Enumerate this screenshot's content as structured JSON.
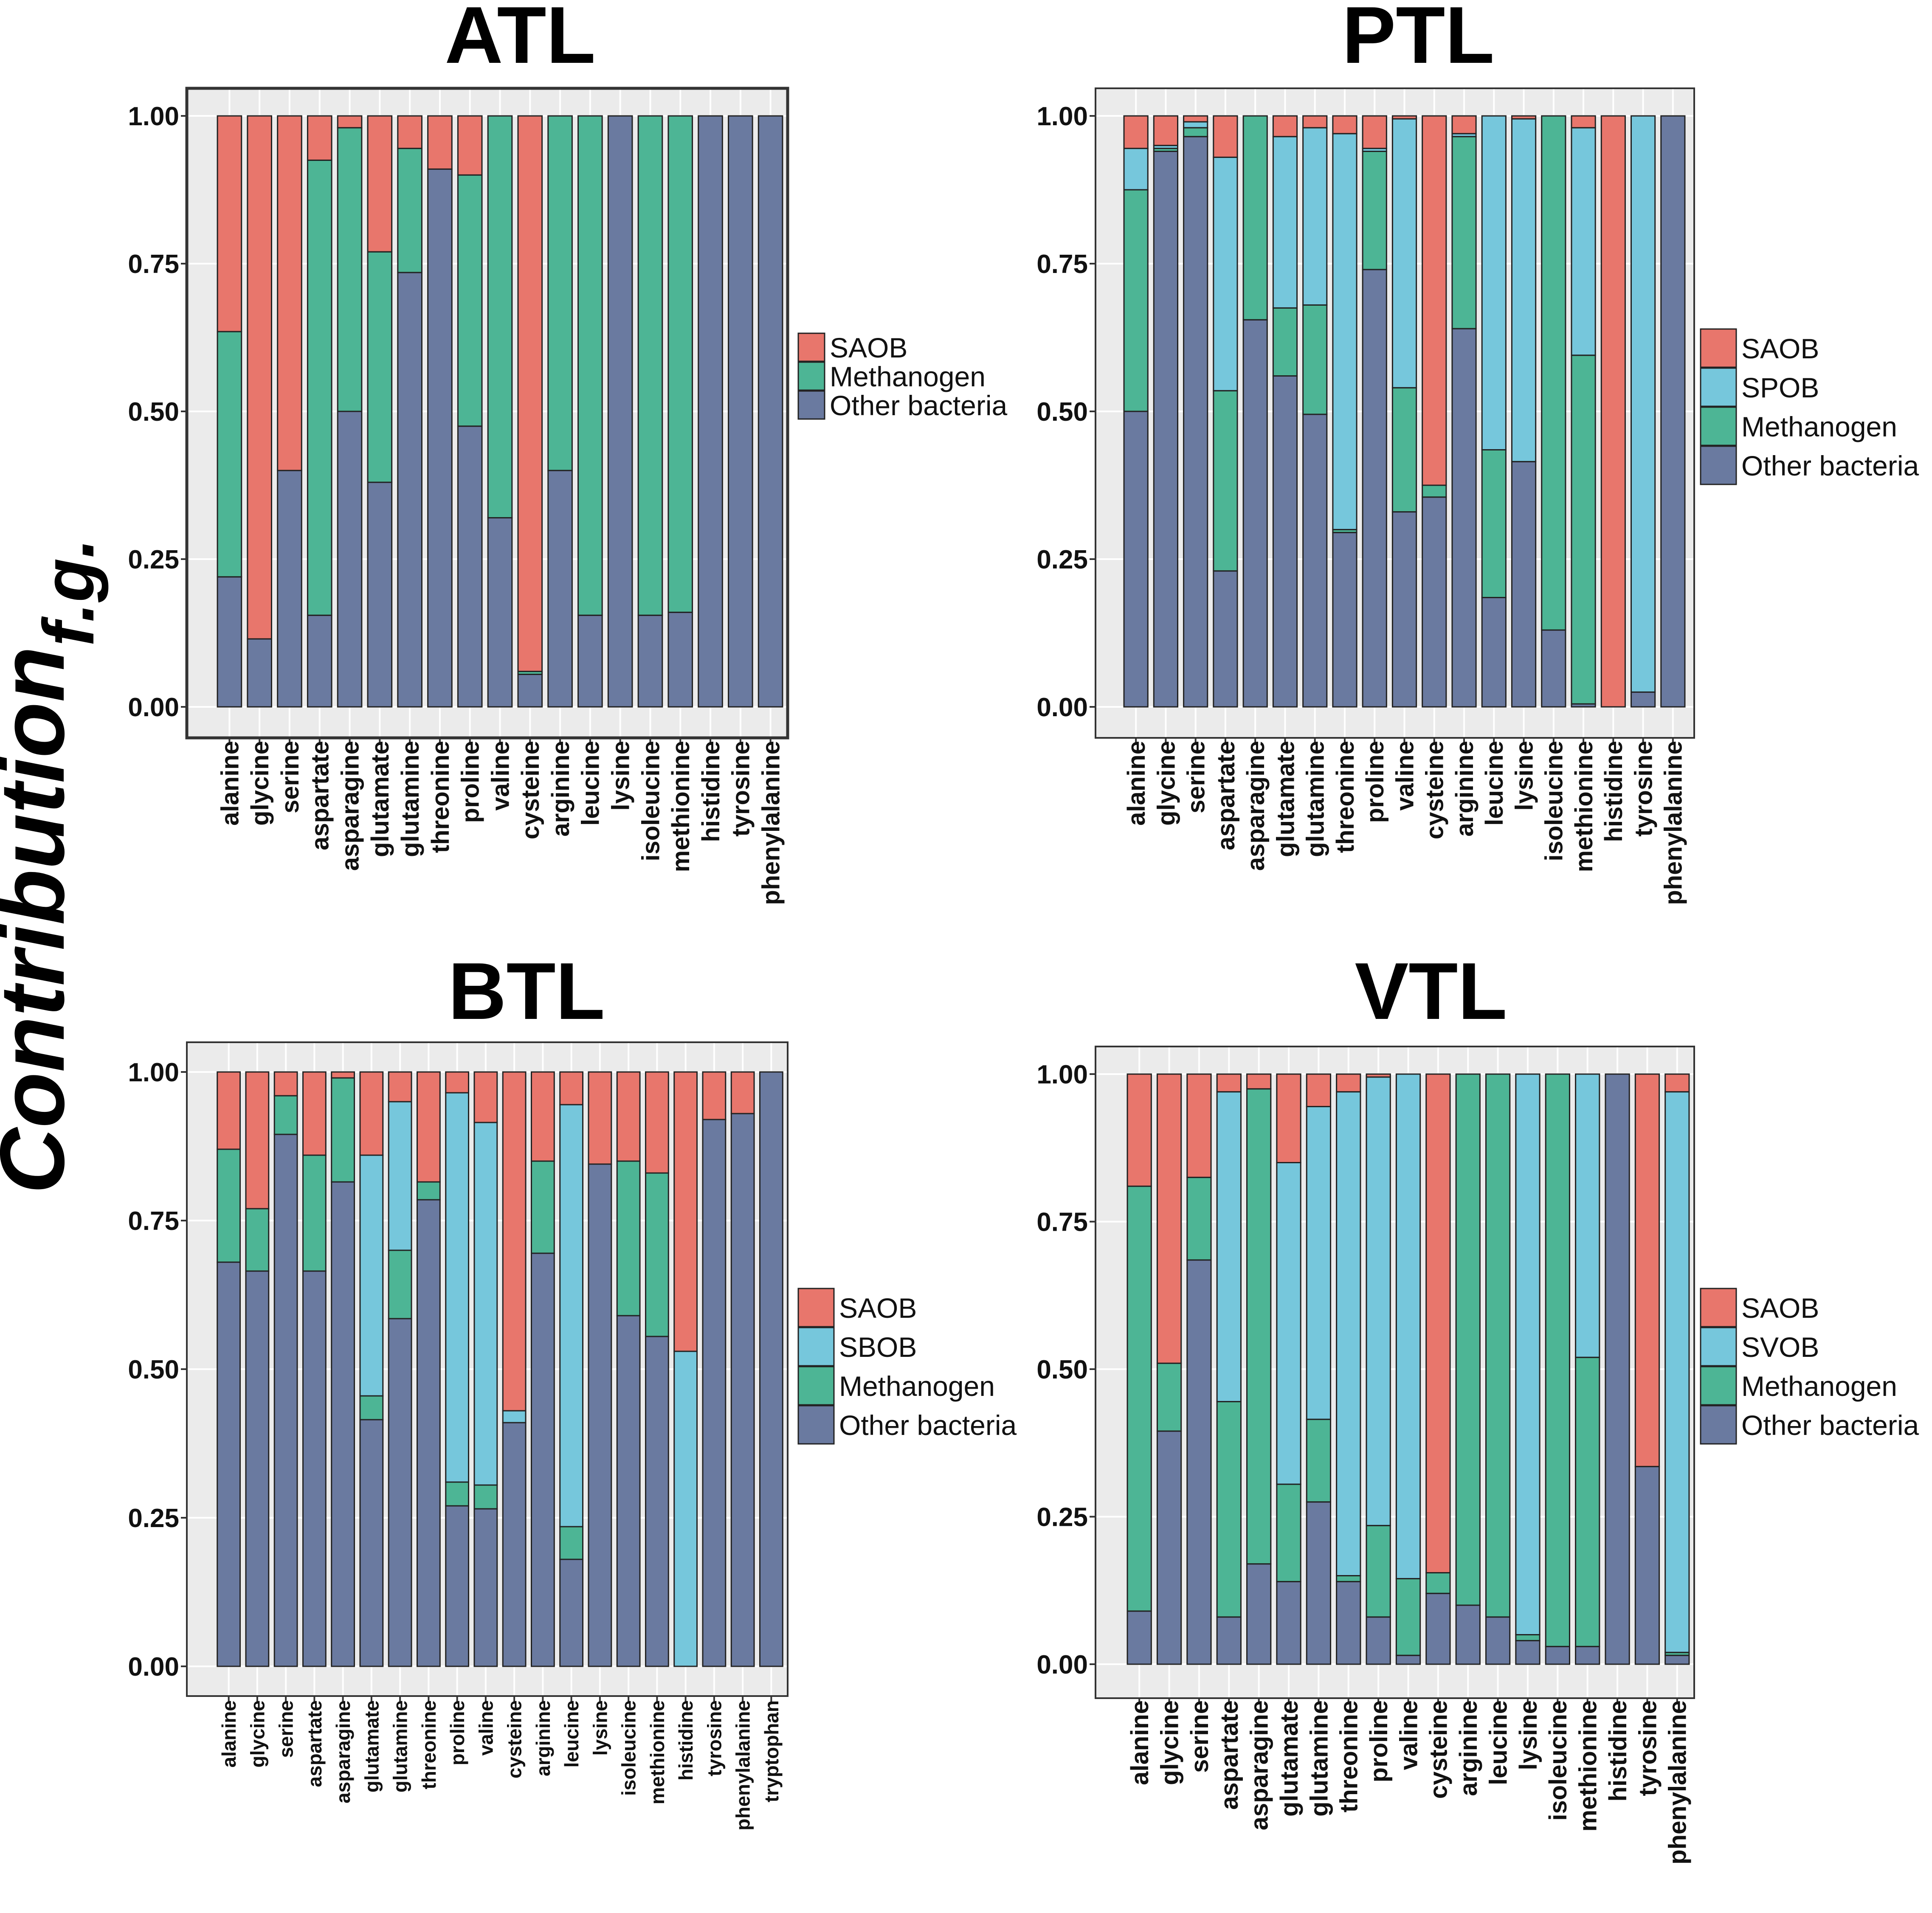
{
  "y_axis_label": {
    "main": "Contribution",
    "subscript": "f.g."
  },
  "colors": {
    "SAOB": "#E8766C",
    "SPOB": "#76C7DC",
    "SBOB": "#76C7DC",
    "SVOB": "#76C7DC",
    "Methanogen": "#4DB595",
    "Other bacteria": "#6A7AA0",
    "panel_bg": "#EBEBEB",
    "grid": "#FFFFFF"
  },
  "chart_data": [
    {
      "type": "bar",
      "stacked": true,
      "title": "ATL",
      "xlabel": "",
      "ylabel": "Contribution f.g.",
      "ylim": [
        0,
        1
      ],
      "yticks": [
        "0.00",
        "0.25",
        "0.50",
        "0.75",
        "1.00"
      ],
      "legend": [
        "SAOB",
        "Methanogen",
        "Other bacteria"
      ],
      "legend_position": "right",
      "categories": [
        "alanine",
        "glycine",
        "serine",
        "aspartate",
        "asparagine",
        "glutamate",
        "glutamine",
        "threonine",
        "proline",
        "valine",
        "cysteine",
        "arginine",
        "leucine",
        "lysine",
        "isoleucine",
        "methionine",
        "histidine",
        "tyrosine",
        "phenylalanine"
      ],
      "series": [
        {
          "name": "Other bacteria",
          "values": [
            0.22,
            0.115,
            0.4,
            0.155,
            0.5,
            0.38,
            0.735,
            0.91,
            0.475,
            0.32,
            0.055,
            0.4,
            0.155,
            1.0,
            0.155,
            0.16,
            1.0,
            1.0,
            1.0
          ]
        },
        {
          "name": "Methanogen",
          "values": [
            0.415,
            0.0,
            0.0,
            0.77,
            0.48,
            0.39,
            0.21,
            0.0,
            0.425,
            0.68,
            0.005,
            0.6,
            0.845,
            0.0,
            0.845,
            0.84,
            0.0,
            0.0,
            0.0
          ]
        },
        {
          "name": "SAOB",
          "values": [
            0.365,
            0.885,
            0.6,
            0.075,
            0.02,
            0.23,
            0.055,
            0.09,
            0.1,
            0.0,
            0.94,
            0.0,
            0.0,
            0.0,
            0.0,
            0.0,
            0.0,
            0.0,
            0.0
          ]
        }
      ]
    },
    {
      "type": "bar",
      "stacked": true,
      "title": "PTL",
      "xlabel": "",
      "ylabel": "Contribution f.g.",
      "ylim": [
        0,
        1
      ],
      "yticks": [
        "0.00",
        "0.25",
        "0.50",
        "0.75",
        "1.00"
      ],
      "legend": [
        "SAOB",
        "SPOB",
        "Methanogen",
        "Other bacteria"
      ],
      "legend_position": "right",
      "categories": [
        "alanine",
        "glycine",
        "serine",
        "aspartate",
        "asparagine",
        "glutamate",
        "glutamine",
        "threonine",
        "proline",
        "valine",
        "cysteine",
        "arginine",
        "leucine",
        "lysine",
        "isoleucine",
        "methionine",
        "histidine",
        "tyrosine",
        "phenylalanine"
      ],
      "series": [
        {
          "name": "Other bacteria",
          "values": [
            0.5,
            0.94,
            0.965,
            0.23,
            0.655,
            0.56,
            0.495,
            0.295,
            0.74,
            0.33,
            0.355,
            0.64,
            0.185,
            0.415,
            0.13,
            0.005,
            0.0,
            0.025,
            1.0
          ]
        },
        {
          "name": "Methanogen",
          "values": [
            0.375,
            0.005,
            0.015,
            0.305,
            0.345,
            0.115,
            0.185,
            0.005,
            0.2,
            0.21,
            0.02,
            0.325,
            0.25,
            0.0,
            0.87,
            0.59,
            0.0,
            0.0,
            0.0
          ]
        },
        {
          "name": "SPOB",
          "values": [
            0.07,
            0.005,
            0.01,
            0.395,
            0.0,
            0.29,
            0.3,
            0.67,
            0.005,
            0.455,
            0.0,
            0.005,
            0.565,
            0.58,
            0.0,
            0.385,
            0.0,
            0.975,
            0.0
          ]
        },
        {
          "name": "SAOB",
          "values": [
            0.055,
            0.05,
            0.01,
            0.07,
            0.0,
            0.035,
            0.02,
            0.03,
            0.055,
            0.005,
            0.625,
            0.03,
            0.0,
            0.005,
            0.0,
            0.02,
            1.0,
            0.0,
            0.0
          ]
        }
      ]
    },
    {
      "type": "bar",
      "stacked": true,
      "title": "BTL",
      "xlabel": "",
      "ylabel": "Contribution f.g.",
      "ylim": [
        0,
        1
      ],
      "yticks": [
        "0.00",
        "0.25",
        "0.50",
        "0.75",
        "1.00"
      ],
      "legend": [
        "SAOB",
        "SBOB",
        "Methanogen",
        "Other bacteria"
      ],
      "legend_position": "right",
      "categories": [
        "alanine",
        "glycine",
        "serine",
        "aspartate",
        "asparagine",
        "glutamate",
        "glutamine",
        "threonine",
        "proline",
        "valine",
        "cysteine",
        "arginine",
        "leucine",
        "lysine",
        "isoleucine",
        "methionine",
        "histidine",
        "tyrosine",
        "phenylalanine",
        "tryptophan"
      ],
      "series": [
        {
          "name": "Other bacteria",
          "values": [
            0.68,
            0.665,
            0.895,
            0.665,
            0.815,
            0.415,
            0.585,
            0.785,
            0.27,
            0.265,
            0.41,
            0.695,
            0.18,
            0.845,
            0.59,
            0.555,
            0.0,
            0.92,
            0.93,
            1.0
          ]
        },
        {
          "name": "Methanogen",
          "values": [
            0.19,
            0.105,
            0.065,
            0.195,
            0.175,
            0.04,
            0.115,
            0.03,
            0.04,
            0.04,
            0.0,
            0.155,
            0.055,
            0.0,
            0.26,
            0.275,
            0.0,
            0.0,
            0.0,
            0.0
          ]
        },
        {
          "name": "SBOB",
          "values": [
            0.0,
            0.0,
            0.0,
            0.0,
            0.0,
            0.405,
            0.25,
            0.0,
            0.655,
            0.61,
            0.02,
            0.0,
            0.71,
            0.0,
            0.0,
            0.0,
            0.53,
            0.0,
            0.0,
            0.0
          ]
        },
        {
          "name": "SAOB",
          "values": [
            0.13,
            0.23,
            0.04,
            0.14,
            0.01,
            0.14,
            0.05,
            0.185,
            0.035,
            0.085,
            0.57,
            0.15,
            0.055,
            0.155,
            0.15,
            0.17,
            0.47,
            0.08,
            0.07,
            0.0
          ]
        }
      ]
    },
    {
      "type": "bar",
      "stacked": true,
      "title": "VTL",
      "xlabel": "",
      "ylabel": "Contribution f.g.",
      "ylim": [
        0,
        1
      ],
      "yticks": [
        "0.00",
        "0.25",
        "0.50",
        "0.75",
        "1.00"
      ],
      "legend": [
        "SAOB",
        "SVOB",
        "Methanogen",
        "Other bacteria"
      ],
      "legend_position": "right",
      "categories": [
        "alanine",
        "glycine",
        "serine",
        "aspartate",
        "asparagine",
        "glutamate",
        "glutamine",
        "threonine",
        "proline",
        "valine",
        "cysteine",
        "arginine",
        "leucine",
        "lysine",
        "isoleucine",
        "methionine",
        "histidine",
        "tyrosine",
        "phenylalanine"
      ],
      "series": [
        {
          "name": "Other bacteria",
          "values": [
            0.09,
            0.395,
            0.685,
            0.08,
            0.17,
            0.14,
            0.275,
            0.14,
            0.08,
            0.015,
            0.12,
            0.1,
            0.08,
            0.04,
            0.03,
            0.03,
            1.0,
            0.335,
            0.015
          ]
        },
        {
          "name": "Methanogen",
          "values": [
            0.72,
            0.115,
            0.14,
            0.365,
            0.805,
            0.165,
            0.14,
            0.01,
            0.155,
            0.13,
            0.035,
            0.9,
            0.92,
            0.01,
            0.97,
            0.49,
            0.0,
            0.0,
            0.005
          ]
        },
        {
          "name": "SVOB",
          "values": [
            0.0,
            0.0,
            0.0,
            0.525,
            0.0,
            0.545,
            0.53,
            0.82,
            0.76,
            0.855,
            0.0,
            0.0,
            0.0,
            0.95,
            0.0,
            0.48,
            0.0,
            0.0,
            0.95
          ]
        },
        {
          "name": "SAOB",
          "values": [
            0.19,
            0.49,
            0.175,
            0.03,
            0.025,
            0.15,
            0.055,
            0.03,
            0.005,
            0.0,
            0.845,
            0.0,
            0.0,
            0.0,
            0.0,
            0.0,
            0.0,
            0.665,
            0.03
          ]
        }
      ]
    }
  ]
}
